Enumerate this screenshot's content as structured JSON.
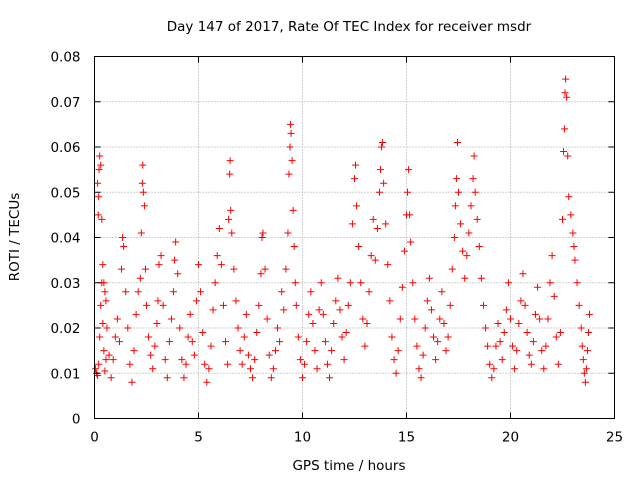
{
  "chart_data": {
    "type": "scatter",
    "title": "Day 147 of 2017, Rate Of TEC Index for receiver msdr",
    "xlabel": "GPS time / hours",
    "ylabel": "ROTI / TECUs",
    "xlim": [
      0,
      25
    ],
    "ylim": [
      0,
      0.08
    ],
    "x_ticks": [
      "0",
      "5",
      "10",
      "15",
      "20",
      "25"
    ],
    "y_ticks": [
      "0",
      "0.01",
      "0.02",
      "0.03",
      "0.04",
      "0.05",
      "0.06",
      "0.07",
      "0.08"
    ],
    "grid": true,
    "marker": "+",
    "color": "#ff0000",
    "series": [
      {
        "points": [
          [
            0.05,
            0.011
          ],
          [
            0.1,
            0.01
          ],
          [
            0.15,
            0.0095
          ],
          [
            0.2,
            0.012
          ],
          [
            0.25,
            0.018
          ],
          [
            0.3,
            0.025
          ],
          [
            0.35,
            0.03
          ],
          [
            0.4,
            0.021
          ],
          [
            0.45,
            0.015
          ],
          [
            0.5,
            0.0105
          ],
          [
            0.55,
            0.013
          ],
          [
            0.15,
            0.052
          ],
          [
            0.18,
            0.045
          ],
          [
            0.2,
            0.049
          ],
          [
            0.22,
            0.055
          ],
          [
            0.25,
            0.058
          ],
          [
            0.3,
            0.056
          ],
          [
            0.35,
            0.044
          ],
          [
            0.4,
            0.034
          ],
          [
            0.45,
            0.03
          ],
          [
            0.5,
            0.028
          ],
          [
            0.55,
            0.026
          ],
          [
            0.6,
            0.02
          ],
          [
            0.7,
            0.014
          ],
          [
            0.8,
            0.009
          ],
          [
            0.9,
            0.013
          ],
          [
            1.0,
            0.018
          ],
          [
            1.1,
            0.022
          ],
          [
            1.2,
            0.017
          ],
          [
            1.3,
            0.033
          ],
          [
            1.35,
            0.04
          ],
          [
            1.4,
            0.038
          ],
          [
            1.5,
            0.028
          ],
          [
            1.6,
            0.02
          ],
          [
            1.7,
            0.012
          ],
          [
            1.8,
            0.008
          ],
          [
            1.9,
            0.015
          ],
          [
            2.0,
            0.023
          ],
          [
            2.1,
            0.028
          ],
          [
            2.2,
            0.031
          ],
          [
            2.25,
            0.041
          ],
          [
            2.3,
            0.052
          ],
          [
            2.32,
            0.056
          ],
          [
            2.35,
            0.05
          ],
          [
            2.4,
            0.047
          ],
          [
            2.45,
            0.033
          ],
          [
            2.5,
            0.025
          ],
          [
            2.6,
            0.018
          ],
          [
            2.7,
            0.014
          ],
          [
            2.8,
            0.011
          ],
          [
            2.9,
            0.016
          ],
          [
            3.0,
            0.021
          ],
          [
            3.05,
            0.026
          ],
          [
            3.1,
            0.034
          ],
          [
            3.2,
            0.036
          ],
          [
            3.3,
            0.025
          ],
          [
            3.4,
            0.013
          ],
          [
            3.5,
            0.009
          ],
          [
            3.6,
            0.017
          ],
          [
            3.7,
            0.022
          ],
          [
            3.8,
            0.028
          ],
          [
            3.85,
            0.035
          ],
          [
            3.9,
            0.039
          ],
          [
            4.0,
            0.032
          ],
          [
            4.1,
            0.02
          ],
          [
            4.2,
            0.013
          ],
          [
            4.3,
            0.009
          ],
          [
            4.4,
            0.012
          ],
          [
            4.5,
            0.018
          ],
          [
            4.6,
            0.023
          ],
          [
            4.7,
            0.017
          ],
          [
            4.8,
            0.014
          ],
          [
            4.9,
            0.026
          ],
          [
            5.0,
            0.034
          ],
          [
            5.1,
            0.028
          ],
          [
            5.2,
            0.019
          ],
          [
            5.3,
            0.012
          ],
          [
            5.4,
            0.008
          ],
          [
            5.5,
            0.011
          ],
          [
            5.6,
            0.016
          ],
          [
            5.7,
            0.024
          ],
          [
            5.8,
            0.03
          ],
          [
            5.9,
            0.036
          ],
          [
            6.0,
            0.042
          ],
          [
            6.1,
            0.034
          ],
          [
            6.2,
            0.025
          ],
          [
            6.3,
            0.017
          ],
          [
            6.4,
            0.012
          ],
          [
            6.45,
            0.044
          ],
          [
            6.5,
            0.054
          ],
          [
            6.52,
            0.057
          ],
          [
            6.55,
            0.046
          ],
          [
            6.6,
            0.041
          ],
          [
            6.7,
            0.033
          ],
          [
            6.8,
            0.026
          ],
          [
            6.9,
            0.02
          ],
          [
            7.0,
            0.015
          ],
          [
            7.1,
            0.012
          ],
          [
            7.2,
            0.018
          ],
          [
            7.3,
            0.023
          ],
          [
            7.4,
            0.014
          ],
          [
            7.5,
            0.011
          ],
          [
            7.6,
            0.009
          ],
          [
            7.7,
            0.013
          ],
          [
            7.8,
            0.019
          ],
          [
            7.9,
            0.025
          ],
          [
            8.0,
            0.032
          ],
          [
            8.05,
            0.04
          ],
          [
            8.1,
            0.041
          ],
          [
            8.2,
            0.033
          ],
          [
            8.3,
            0.022
          ],
          [
            8.4,
            0.014
          ],
          [
            8.5,
            0.009
          ],
          [
            8.6,
            0.011
          ],
          [
            8.7,
            0.015
          ],
          [
            8.8,
            0.02
          ],
          [
            8.9,
            0.017
          ],
          [
            9.0,
            0.028
          ],
          [
            9.1,
            0.024
          ],
          [
            9.2,
            0.033
          ],
          [
            9.3,
            0.041
          ],
          [
            9.35,
            0.054
          ],
          [
            9.4,
            0.06
          ],
          [
            9.42,
            0.065
          ],
          [
            9.45,
            0.063
          ],
          [
            9.5,
            0.057
          ],
          [
            9.55,
            0.046
          ],
          [
            9.6,
            0.038
          ],
          [
            9.65,
            0.03
          ],
          [
            9.7,
            0.025
          ],
          [
            9.8,
            0.018
          ],
          [
            9.9,
            0.013
          ],
          [
            10.0,
            0.009
          ],
          [
            10.1,
            0.012
          ],
          [
            10.2,
            0.017
          ],
          [
            10.3,
            0.023
          ],
          [
            10.4,
            0.028
          ],
          [
            10.5,
            0.021
          ],
          [
            10.6,
            0.015
          ],
          [
            10.7,
            0.011
          ],
          [
            10.8,
            0.024
          ],
          [
            10.9,
            0.03
          ],
          [
            11.0,
            0.023
          ],
          [
            11.1,
            0.017
          ],
          [
            11.2,
            0.012
          ],
          [
            11.3,
            0.009
          ],
          [
            11.4,
            0.015
          ],
          [
            11.5,
            0.021
          ],
          [
            11.6,
            0.026
          ],
          [
            11.7,
            0.031
          ],
          [
            11.8,
            0.024
          ],
          [
            11.9,
            0.018
          ],
          [
            12.0,
            0.013
          ],
          [
            12.1,
            0.019
          ],
          [
            12.2,
            0.025
          ],
          [
            12.3,
            0.03
          ],
          [
            12.4,
            0.043
          ],
          [
            12.5,
            0.053
          ],
          [
            12.55,
            0.056
          ],
          [
            12.6,
            0.047
          ],
          [
            12.7,
            0.038
          ],
          [
            12.8,
            0.03
          ],
          [
            12.9,
            0.022
          ],
          [
            13.0,
            0.016
          ],
          [
            13.1,
            0.021
          ],
          [
            13.2,
            0.028
          ],
          [
            13.3,
            0.036
          ],
          [
            13.4,
            0.044
          ],
          [
            13.5,
            0.035
          ],
          [
            13.6,
            0.042
          ],
          [
            13.7,
            0.05
          ],
          [
            13.75,
            0.055
          ],
          [
            13.8,
            0.06
          ],
          [
            13.85,
            0.061
          ],
          [
            13.9,
            0.052
          ],
          [
            14.0,
            0.043
          ],
          [
            14.1,
            0.034
          ],
          [
            14.2,
            0.026
          ],
          [
            14.3,
            0.018
          ],
          [
            14.4,
            0.013
          ],
          [
            14.5,
            0.01
          ],
          [
            14.6,
            0.015
          ],
          [
            14.7,
            0.022
          ],
          [
            14.8,
            0.029
          ],
          [
            14.9,
            0.037
          ],
          [
            15.0,
            0.045
          ],
          [
            15.05,
            0.05
          ],
          [
            15.1,
            0.055
          ],
          [
            15.15,
            0.045
          ],
          [
            15.2,
            0.039
          ],
          [
            15.3,
            0.03
          ],
          [
            15.4,
            0.022
          ],
          [
            15.5,
            0.016
          ],
          [
            15.6,
            0.011
          ],
          [
            15.7,
            0.009
          ],
          [
            15.8,
            0.014
          ],
          [
            15.9,
            0.02
          ],
          [
            16.0,
            0.026
          ],
          [
            16.1,
            0.031
          ],
          [
            16.2,
            0.024
          ],
          [
            16.3,
            0.018
          ],
          [
            16.4,
            0.013
          ],
          [
            16.5,
            0.017
          ],
          [
            16.6,
            0.022
          ],
          [
            16.7,
            0.028
          ],
          [
            16.8,
            0.021
          ],
          [
            16.9,
            0.015
          ],
          [
            17.0,
            0.018
          ],
          [
            17.1,
            0.025
          ],
          [
            17.2,
            0.033
          ],
          [
            17.3,
            0.04
          ],
          [
            17.35,
            0.047
          ],
          [
            17.4,
            0.053
          ],
          [
            17.45,
            0.061
          ],
          [
            17.5,
            0.05
          ],
          [
            17.6,
            0.043
          ],
          [
            17.7,
            0.037
          ],
          [
            17.8,
            0.031
          ],
          [
            17.9,
            0.036
          ],
          [
            18.0,
            0.041
          ],
          [
            18.1,
            0.047
          ],
          [
            18.2,
            0.053
          ],
          [
            18.25,
            0.058
          ],
          [
            18.3,
            0.05
          ],
          [
            18.4,
            0.044
          ],
          [
            18.5,
            0.038
          ],
          [
            18.6,
            0.031
          ],
          [
            18.7,
            0.025
          ],
          [
            18.8,
            0.02
          ],
          [
            18.9,
            0.016
          ],
          [
            19.0,
            0.012
          ],
          [
            19.1,
            0.009
          ],
          [
            19.2,
            0.011
          ],
          [
            19.3,
            0.016
          ],
          [
            19.4,
            0.021
          ],
          [
            19.5,
            0.017
          ],
          [
            19.6,
            0.013
          ],
          [
            19.7,
            0.019
          ],
          [
            19.8,
            0.024
          ],
          [
            19.9,
            0.03
          ],
          [
            20.0,
            0.022
          ],
          [
            20.1,
            0.016
          ],
          [
            20.2,
            0.011
          ],
          [
            20.3,
            0.015
          ],
          [
            20.4,
            0.021
          ],
          [
            20.5,
            0.026
          ],
          [
            20.6,
            0.032
          ],
          [
            20.7,
            0.025
          ],
          [
            20.8,
            0.019
          ],
          [
            20.9,
            0.014
          ],
          [
            21.0,
            0.012
          ],
          [
            21.1,
            0.017
          ],
          [
            21.2,
            0.023
          ],
          [
            21.3,
            0.029
          ],
          [
            21.4,
            0.022
          ],
          [
            21.5,
            0.015
          ],
          [
            21.6,
            0.011
          ],
          [
            21.7,
            0.016
          ],
          [
            21.8,
            0.022
          ],
          [
            21.9,
            0.03
          ],
          [
            22.0,
            0.036
          ],
          [
            22.1,
            0.027
          ],
          [
            22.2,
            0.018
          ],
          [
            22.3,
            0.012
          ],
          [
            22.4,
            0.019
          ],
          [
            22.5,
            0.044
          ],
          [
            22.55,
            0.059
          ],
          [
            22.6,
            0.064
          ],
          [
            22.62,
            0.072
          ],
          [
            22.65,
            0.075
          ],
          [
            22.7,
            0.071
          ],
          [
            22.75,
            0.058
          ],
          [
            22.8,
            0.049
          ],
          [
            22.9,
            0.045
          ],
          [
            23.0,
            0.041
          ],
          [
            23.05,
            0.038
          ],
          [
            23.1,
            0.035
          ],
          [
            23.2,
            0.03
          ],
          [
            23.3,
            0.025
          ],
          [
            23.4,
            0.02
          ],
          [
            23.45,
            0.016
          ],
          [
            23.5,
            0.013
          ],
          [
            23.55,
            0.01
          ],
          [
            23.6,
            0.008
          ],
          [
            23.65,
            0.011
          ],
          [
            23.7,
            0.015
          ],
          [
            23.75,
            0.019
          ],
          [
            23.8,
            0.023
          ]
        ]
      }
    ]
  }
}
